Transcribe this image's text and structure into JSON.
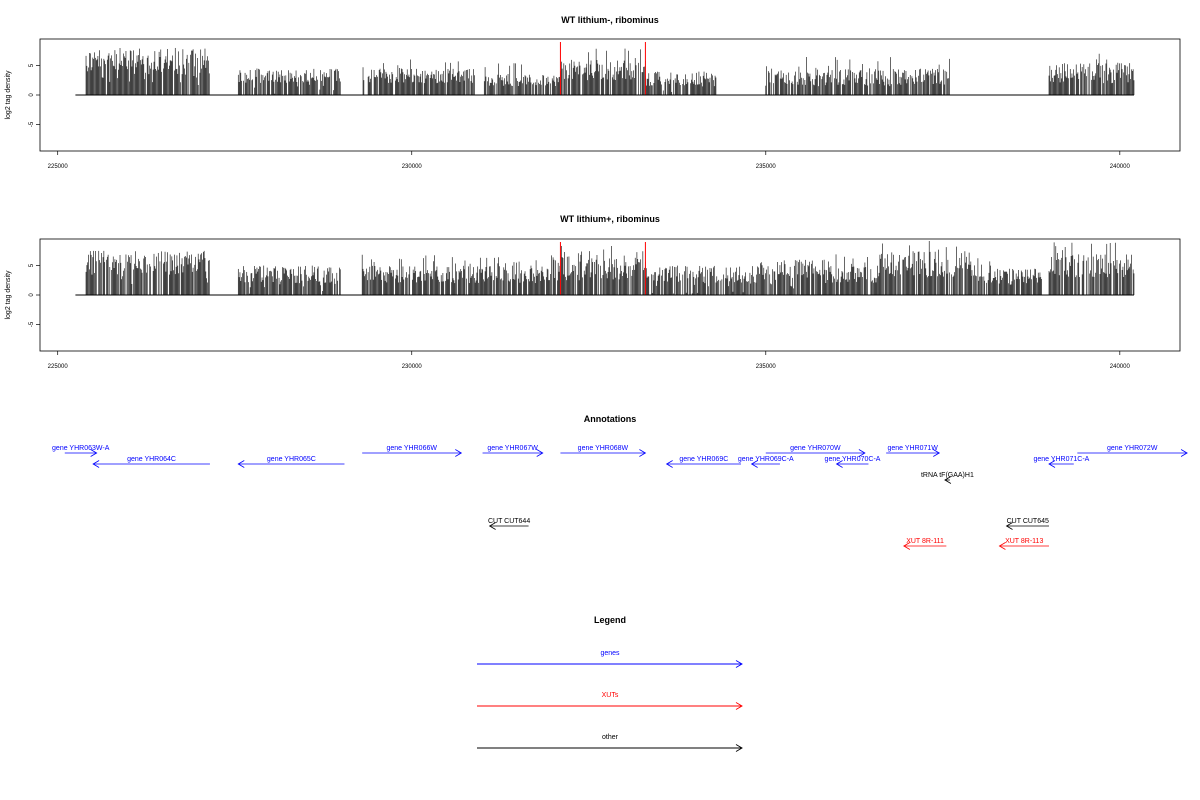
{
  "chart_data": [
    {
      "type": "bar",
      "title": "WT lithium-, ribominus",
      "ylabel": "log2 tag density",
      "xlim": [
        224750,
        240850
      ],
      "ylim": [
        -9.5,
        9.5
      ],
      "x_ticks": [
        225000,
        230000,
        235000,
        240000
      ],
      "y_ticks": [
        -5,
        0,
        5
      ],
      "y_tick_labels": [
        "-5",
        "0",
        "5"
      ],
      "marker_positions": [
        232100,
        233300
      ],
      "marker_color": "#ff0000",
      "baseline": [
        225250,
        240200
      ],
      "segments": [
        {
          "x0": 225400,
          "x1": 227150,
          "lo": -8.0,
          "hi": -3.5,
          "pos": false
        },
        {
          "x0": 227550,
          "x1": 229000,
          "lo": -4.5,
          "hi": -2.0,
          "pos": false
        },
        {
          "x0": 229300,
          "x1": 230900,
          "lo": 2.0,
          "hi": 4.5,
          "pos": true
        },
        {
          "x0": 231000,
          "x1": 232100,
          "lo": 1.5,
          "hi": 3.5,
          "pos": true
        },
        {
          "x0": 232100,
          "x1": 233300,
          "lo": 2.5,
          "hi": 6.0,
          "pos": true
        },
        {
          "x0": 233300,
          "x1": 234300,
          "lo": -4.0,
          "hi": -1.5,
          "pos": false
        },
        {
          "x0": 235000,
          "x1": 237600,
          "lo": 1.5,
          "hi": 4.5,
          "pos": true
        },
        {
          "x0": 239000,
          "x1": 240200,
          "lo": 2.0,
          "hi": 5.5,
          "pos": true
        }
      ]
    },
    {
      "type": "bar",
      "title": "WT lithium+, ribominus",
      "ylabel": "log2 tag density",
      "xlim": [
        224750,
        240850
      ],
      "ylim": [
        -9.5,
        9.5
      ],
      "x_ticks": [
        225000,
        230000,
        235000,
        240000
      ],
      "y_ticks": [
        -5,
        0,
        5
      ],
      "y_tick_labels": [
        "-5",
        "0",
        "5"
      ],
      "marker_positions": [
        232100,
        233300
      ],
      "marker_color": "#ff0000",
      "baseline": [
        225250,
        240200
      ],
      "segments": [
        {
          "x0": 225400,
          "x1": 227150,
          "lo": -7.5,
          "hi": -3.5,
          "pos": false
        },
        {
          "x0": 227550,
          "x1": 229000,
          "lo": -5.0,
          "hi": -2.0,
          "pos": false
        },
        {
          "x0": 229300,
          "x1": 231000,
          "lo": 2.0,
          "hi": 5.0,
          "pos": true
        },
        {
          "x0": 231000,
          "x1": 232100,
          "lo": 2.0,
          "hi": 5.0,
          "pos": true
        },
        {
          "x0": 232100,
          "x1": 233300,
          "lo": 2.5,
          "hi": 6.5,
          "pos": true
        },
        {
          "x0": 233300,
          "x1": 234900,
          "lo": -5.0,
          "hi": -2.0,
          "pos": false
        },
        {
          "x0": 234900,
          "x1": 235800,
          "lo": -6.0,
          "hi": -2.5,
          "pos": false
        },
        {
          "x0": 235800,
          "x1": 236600,
          "lo": 2.0,
          "hi": 5.0,
          "pos": true
        },
        {
          "x0": 236600,
          "x1": 237900,
          "lo": 3.0,
          "hi": 7.5,
          "pos": true
        },
        {
          "x0": 237900,
          "x1": 238900,
          "lo": 1.5,
          "hi": 4.5,
          "pos": true
        },
        {
          "x0": 239000,
          "x1": 240200,
          "lo": 3.0,
          "hi": 7.0,
          "pos": true
        }
      ]
    }
  ],
  "annotations": {
    "title": "Annotations",
    "features": [
      {
        "label": "gene YHR063W-A",
        "color": "#0000ff",
        "dir": "right",
        "x0": 225100,
        "x1": 225550,
        "row": 0
      },
      {
        "label": "gene YHR064C",
        "color": "#0000ff",
        "dir": "left",
        "x0": 225500,
        "x1": 227150,
        "row": 1
      },
      {
        "label": "gene YHR065C",
        "color": "#0000ff",
        "dir": "left",
        "x0": 227550,
        "x1": 229050,
        "row": 1
      },
      {
        "label": "gene YHR066W",
        "color": "#0000ff",
        "dir": "right",
        "x0": 229300,
        "x1": 230700,
        "row": 0
      },
      {
        "label": "gene YHR067W",
        "color": "#0000ff",
        "dir": "right",
        "x0": 231000,
        "x1": 231850,
        "row": 0
      },
      {
        "label": "gene YHR068W",
        "color": "#0000ff",
        "dir": "right",
        "x0": 232100,
        "x1": 233300,
        "row": 0
      },
      {
        "label": "gene YHR069C",
        "color": "#0000ff",
        "dir": "left",
        "x0": 233600,
        "x1": 234650,
        "row": 1
      },
      {
        "label": "gene YHR069C-A",
        "color": "#0000ff",
        "dir": "left",
        "x0": 234800,
        "x1": 235200,
        "row": 1
      },
      {
        "label": "gene YHR070W",
        "color": "#0000ff",
        "dir": "right",
        "x0": 235000,
        "x1": 236400,
        "row": 0
      },
      {
        "label": "gene YHR070C-A",
        "color": "#0000ff",
        "dir": "left",
        "x0": 236000,
        "x1": 236450,
        "row": 1
      },
      {
        "label": "gene YHR071W",
        "color": "#0000ff",
        "dir": "right",
        "x0": 236700,
        "x1": 237450,
        "row": 0
      },
      {
        "label": "gene YHR071C-A",
        "color": "#0000ff",
        "dir": "left",
        "x0": 239000,
        "x1": 239350,
        "row": 1
      },
      {
        "label": "gene YHR072W",
        "color": "#0000ff",
        "dir": "right",
        "x0": 239400,
        "x1": 240950,
        "row": 0
      },
      {
        "label": "tRNA tF(GAA)H1",
        "color": "#000000",
        "dir": "left",
        "x0": 237530,
        "x1": 237600,
        "row": 2
      },
      {
        "label": "CUT CUT644",
        "color": "#000000",
        "dir": "left",
        "x0": 231100,
        "x1": 231650,
        "row": 3
      },
      {
        "label": "CUT CUT645",
        "color": "#000000",
        "dir": "left",
        "x0": 238400,
        "x1": 239000,
        "row": 3
      },
      {
        "label": "XUT 8R-111",
        "color": "#ff0000",
        "dir": "left",
        "x0": 236950,
        "x1": 237550,
        "row": 4
      },
      {
        "label": "XUT 8R-113",
        "color": "#ff0000",
        "dir": "left",
        "x0": 238300,
        "x1": 239000,
        "row": 4
      }
    ]
  },
  "legend": {
    "title": "Legend",
    "items": [
      {
        "label": "genes",
        "color": "#0000ff"
      },
      {
        "label": "XUTs",
        "color": "#ff0000"
      },
      {
        "label": "other",
        "color": "#000000"
      }
    ]
  }
}
